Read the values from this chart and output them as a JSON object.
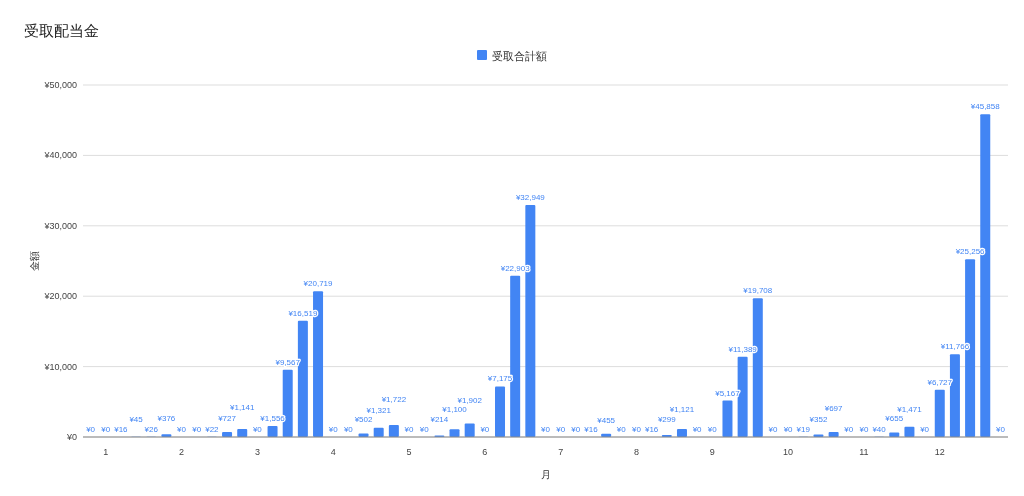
{
  "chart_data": {
    "type": "bar",
    "title": "受取配当金",
    "xlabel": "月",
    "ylabel": "金額",
    "x": [
      0.8,
      1,
      1.2,
      1.4,
      1.6,
      1.8,
      2,
      2.2,
      2.4,
      2.6,
      2.8,
      3,
      3.2,
      3.4,
      3.6,
      3.8,
      4,
      4.2,
      4.4,
      4.6,
      4.8,
      5,
      5.2,
      5.4,
      5.6,
      5.8,
      6,
      6.2,
      6.4,
      6.6,
      6.8,
      7,
      7.2,
      7.4,
      7.6,
      7.8,
      8,
      8.2,
      8.4,
      8.6,
      8.8,
      9,
      9.2,
      9.4,
      9.6,
      9.8,
      10,
      10.2,
      10.4,
      10.6,
      10.8,
      11,
      11.2,
      11.4,
      11.6,
      11.8,
      12,
      12.2,
      12.4,
      12.6,
      12.8
    ],
    "series": [
      {
        "name": "受取合計額",
        "color": "#4285f4",
        "values": [
          0,
          0,
          16,
          45,
          26,
          376,
          0,
          0,
          22,
          727,
          1141,
          0,
          1556,
          9567,
          16519,
          20719,
          0,
          0,
          502,
          1321,
          1722,
          0,
          0,
          214,
          1100,
          1902,
          0,
          7175,
          22903,
          32949,
          0,
          0,
          0,
          16,
          455,
          0,
          0,
          16,
          299,
          1121,
          0,
          0,
          5167,
          11389,
          19708,
          0,
          0,
          19,
          352,
          697,
          0,
          0,
          40,
          655,
          1471,
          0,
          6727,
          11766,
          25256,
          45858,
          0
        ],
        "value_labels": [
          "¥0",
          "¥0",
          "¥16",
          "¥45",
          "¥26",
          "¥376",
          "¥0",
          "¥0",
          "¥22",
          "¥727",
          "¥1,141",
          "¥0",
          "¥1,556",
          "¥9,567",
          "¥16,519",
          "¥20,719",
          "¥0",
          "¥0",
          "¥502",
          "¥1,321",
          "¥1,722",
          "¥0",
          "¥0",
          "¥214",
          "¥1,100",
          "¥1,902",
          "¥0",
          "¥7,175",
          "¥22,903",
          "¥32,949",
          "¥0",
          "¥0",
          "¥0",
          "¥16",
          "¥455",
          "¥0",
          "¥0",
          "¥16",
          "¥299",
          "¥1,121",
          "¥0",
          "¥0",
          "¥5,167",
          "¥11,389",
          "¥19,708",
          "¥0",
          "¥0",
          "¥19",
          "¥352",
          "¥697",
          "¥0",
          "¥0",
          "¥40",
          "¥655",
          "¥1,471",
          "¥0",
          "¥6,727",
          "¥11,766",
          "¥25,256",
          "¥45,858",
          "¥0"
        ]
      }
    ],
    "xlim": [
      0.7,
      12.9
    ],
    "xticks": [
      1,
      2,
      3,
      4,
      5,
      6,
      7,
      8,
      9,
      10,
      11,
      12
    ],
    "ylim": [
      0,
      50000
    ],
    "yticks": [
      {
        "value": 0,
        "label": "¥0"
      },
      {
        "value": 10000,
        "label": "¥10,000"
      },
      {
        "value": 20000,
        "label": "¥20,000"
      },
      {
        "value": 30000,
        "label": "¥30,000"
      },
      {
        "value": 40000,
        "label": "¥40,000"
      },
      {
        "value": 50000,
        "label": "¥50,000"
      }
    ],
    "grid": "y",
    "legend": "top"
  }
}
